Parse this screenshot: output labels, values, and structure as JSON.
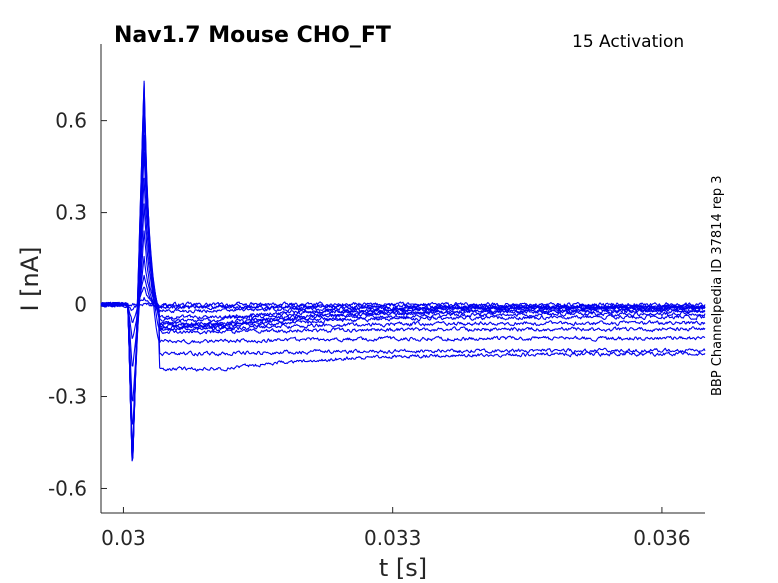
{
  "chart_data": {
    "type": "line",
    "title": "Nav1.7  Mouse  CHO_FT",
    "subtitle": "15  Activation",
    "side_note": "BBP Channelpedia ID 37814 rep 3",
    "xlabel": "t [s]",
    "ylabel": "I [nA]",
    "xlim": [
      0.02975,
      0.03648
    ],
    "ylim": [
      -0.68,
      0.85
    ],
    "xticks": [
      0.03,
      0.033,
      0.036
    ],
    "xtick_labels": [
      "0.03",
      "0.033",
      "0.036"
    ],
    "yticks": [
      0.6,
      0.3,
      0,
      -0.3,
      -0.6
    ],
    "ytick_labels": [
      "0.6",
      "0.3",
      "0",
      "-0.3",
      "-0.6"
    ],
    "grid": false,
    "line_color": "#0000ee",
    "axis_color": "#262626",
    "series": [
      {
        "peak_in": 0.0,
        "peak_out": 0.0,
        "late_dip": 0.0,
        "plateau": 0.0
      },
      {
        "peak_in": -0.02,
        "peak_out": 0.02,
        "late_dip": -0.005,
        "plateau": -0.005
      },
      {
        "peak_in": -0.06,
        "peak_out": 0.06,
        "late_dip": -0.01,
        "plateau": -0.01
      },
      {
        "peak_in": -0.12,
        "peak_out": 0.1,
        "late_dip": -0.02,
        "plateau": -0.01
      },
      {
        "peak_in": -0.22,
        "peak_out": 0.16,
        "late_dip": -0.04,
        "plateau": -0.01
      },
      {
        "peak_in": -0.34,
        "peak_out": 0.24,
        "late_dip": -0.05,
        "plateau": -0.01
      },
      {
        "peak_in": -0.43,
        "peak_out": 0.33,
        "late_dip": -0.06,
        "plateau": -0.02
      },
      {
        "peak_in": -0.48,
        "peak_out": 0.42,
        "late_dip": -0.065,
        "plateau": -0.02
      },
      {
        "peak_in": -0.51,
        "peak_out": 0.5,
        "late_dip": -0.07,
        "plateau": -0.03
      },
      {
        "peak_in": -0.53,
        "peak_out": 0.56,
        "late_dip": -0.075,
        "plateau": -0.04
      },
      {
        "peak_in": -0.54,
        "peak_out": 0.62,
        "late_dip": -0.08,
        "plateau": -0.06
      },
      {
        "peak_in": -0.545,
        "peak_out": 0.66,
        "late_dip": -0.09,
        "plateau": -0.08
      },
      {
        "peak_in": -0.55,
        "peak_out": 0.7,
        "late_dip": -0.12,
        "plateau": -0.11
      },
      {
        "peak_in": -0.55,
        "peak_out": 0.73,
        "late_dip": -0.16,
        "plateau": -0.15
      },
      {
        "peak_in": -0.55,
        "peak_out": 0.74,
        "late_dip": -0.21,
        "plateau": -0.16
      }
    ]
  }
}
